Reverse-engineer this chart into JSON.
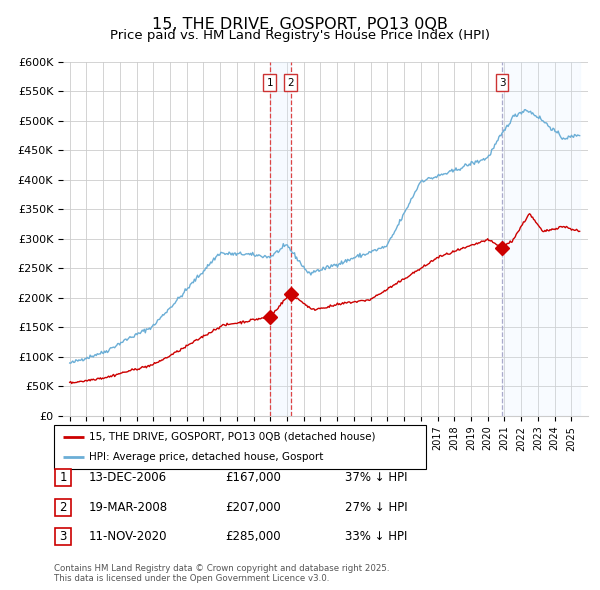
{
  "title": "15, THE DRIVE, GOSPORT, PO13 0QB",
  "subtitle": "Price paid vs. HM Land Registry's House Price Index (HPI)",
  "title_fontsize": 11.5,
  "subtitle_fontsize": 9.5,
  "hpi_color": "#6baed6",
  "price_color": "#cc0000",
  "background_color": "#ffffff",
  "grid_color": "#cccccc",
  "ylim": [
    0,
    600000
  ],
  "yticks": [
    0,
    50000,
    100000,
    150000,
    200000,
    250000,
    300000,
    350000,
    400000,
    450000,
    500000,
    550000,
    600000
  ],
  "ytick_labels": [
    "£0",
    "£50K",
    "£100K",
    "£150K",
    "£200K",
    "£250K",
    "£300K",
    "£350K",
    "£400K",
    "£450K",
    "£500K",
    "£550K",
    "£600K"
  ],
  "transactions": [
    {
      "label": "1",
      "date": "13-DEC-2006",
      "price": 167000,
      "pct": "37% ↓ HPI",
      "year": 2006.96
    },
    {
      "label": "2",
      "date": "19-MAR-2008",
      "price": 207000,
      "pct": "27% ↓ HPI",
      "year": 2008.21
    },
    {
      "label": "3",
      "date": "11-NOV-2020",
      "price": 285000,
      "pct": "33% ↓ HPI",
      "year": 2020.86
    }
  ],
  "legend_line1": "15, THE DRIVE, GOSPORT, PO13 0QB (detached house)",
  "legend_line2": "HPI: Average price, detached house, Gosport",
  "footer": "Contains HM Land Registry data © Crown copyright and database right 2025.\nThis data is licensed under the Open Government Licence v3.0.",
  "shade_color": "#ddeeff",
  "vline_color_12": "#dd4444",
  "vline_color_3": "#aaaacc"
}
